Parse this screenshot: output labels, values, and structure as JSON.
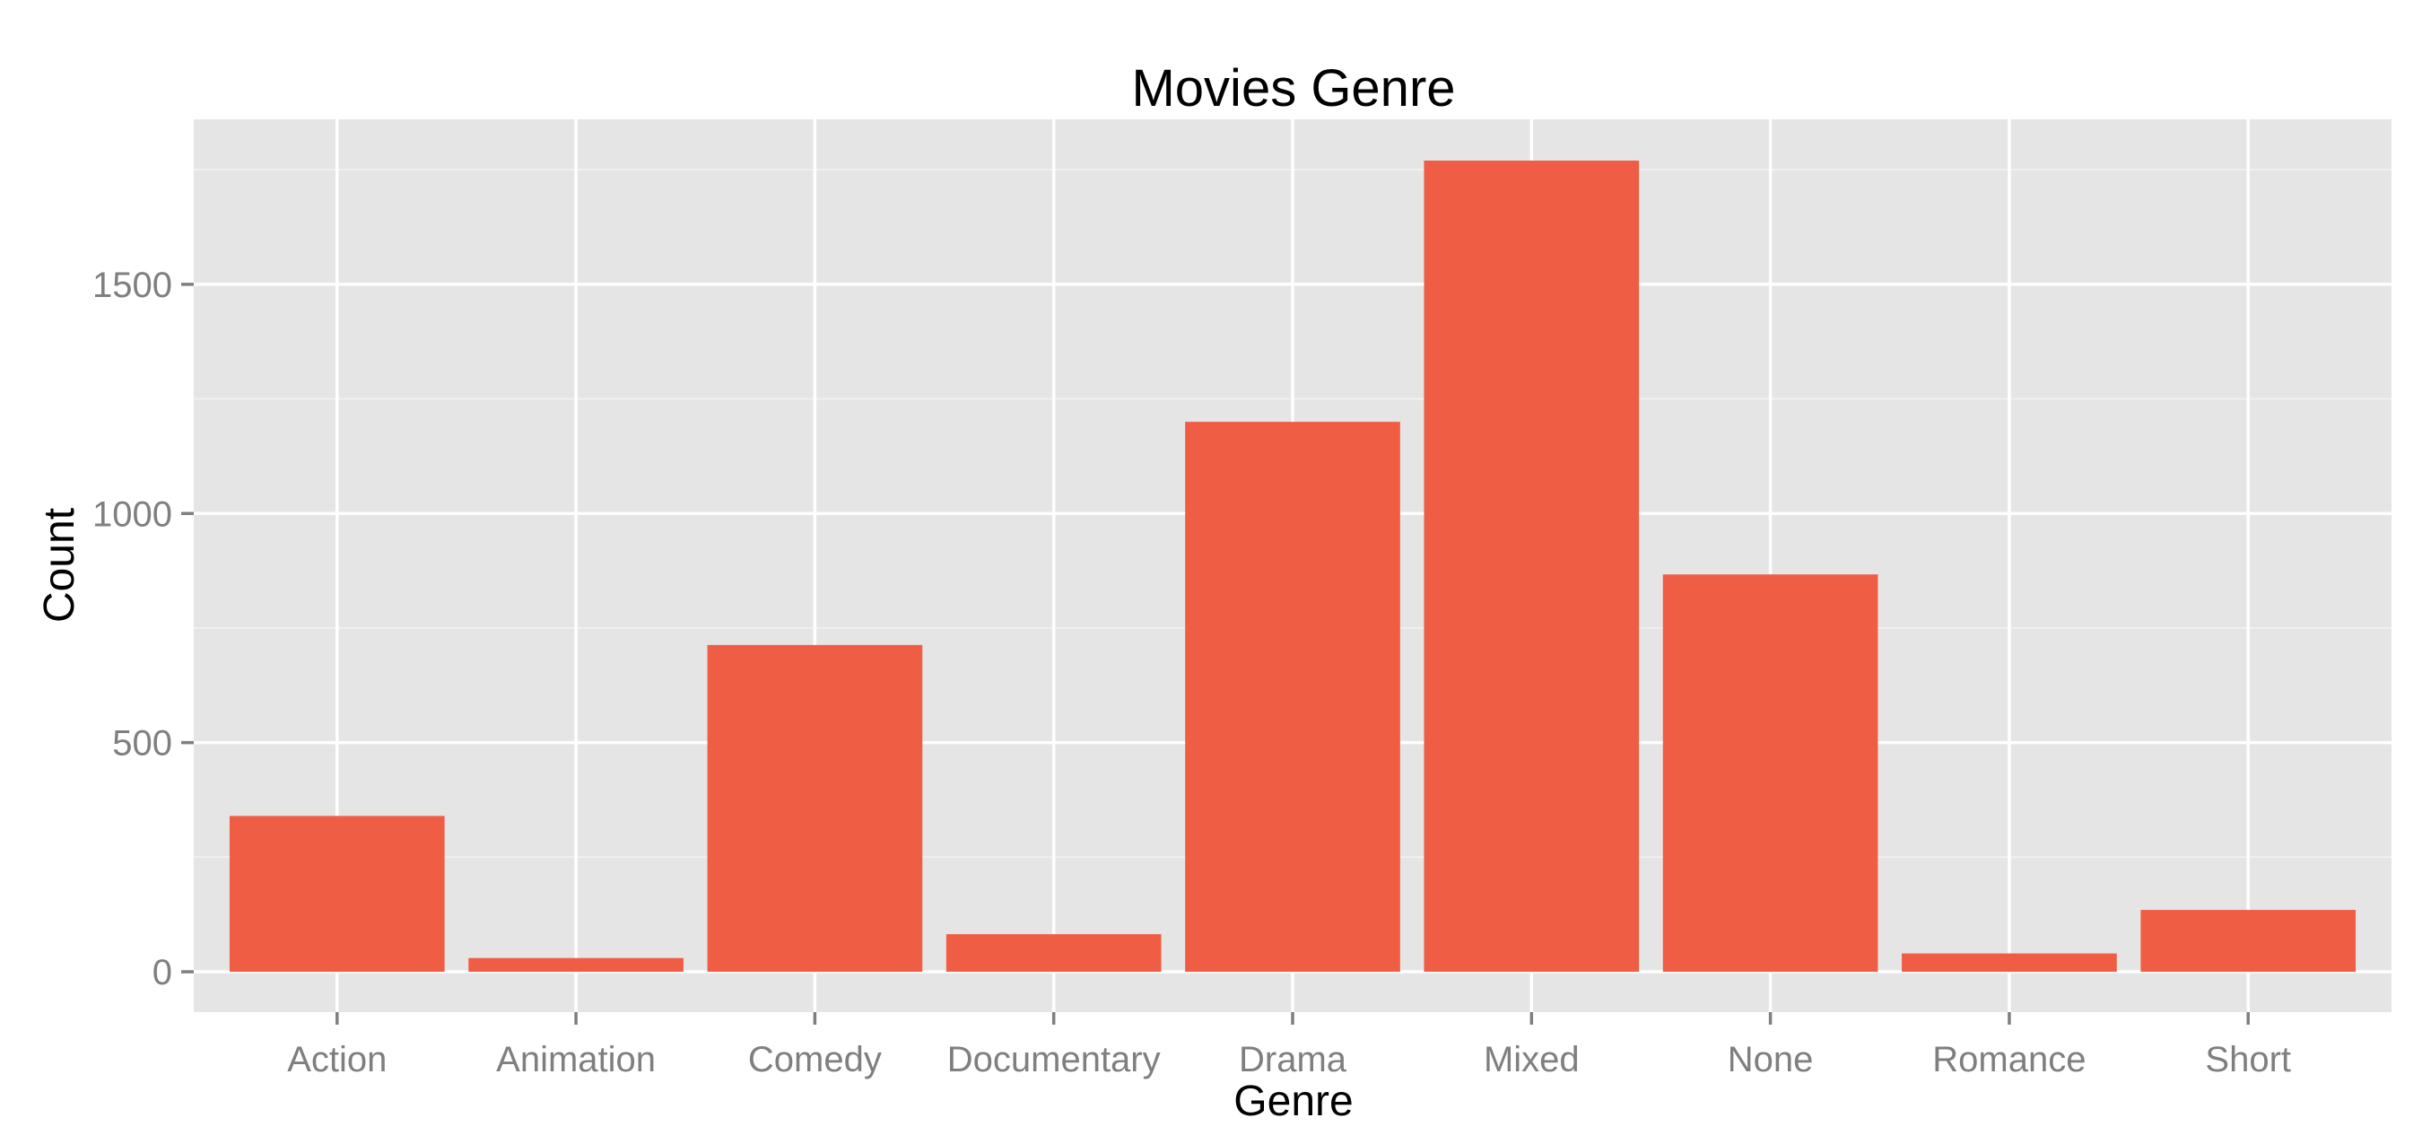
{
  "chart_data": {
    "type": "bar",
    "title": "Movies Genre",
    "xlabel": "Genre",
    "ylabel": "Count",
    "categories": [
      "Action",
      "Animation",
      "Comedy",
      "Documentary",
      "Drama",
      "Mixed",
      "None",
      "Romance",
      "Short"
    ],
    "values": [
      340,
      30,
      713,
      82,
      1200,
      1770,
      867,
      40,
      135
    ],
    "yticks": [
      0,
      500,
      1000,
      1500
    ],
    "ytick_labels": [
      "0",
      "500",
      "1000",
      "1500"
    ],
    "ylim": [
      -88,
      1860
    ],
    "grid": true,
    "legend": "none",
    "colors": {
      "bar": "#EF5E44",
      "panel": "#E5E5E5",
      "grid_major": "#FFFFFF",
      "grid_minor": "#F2F2F2",
      "tick_text": "#7F7F7F"
    }
  }
}
